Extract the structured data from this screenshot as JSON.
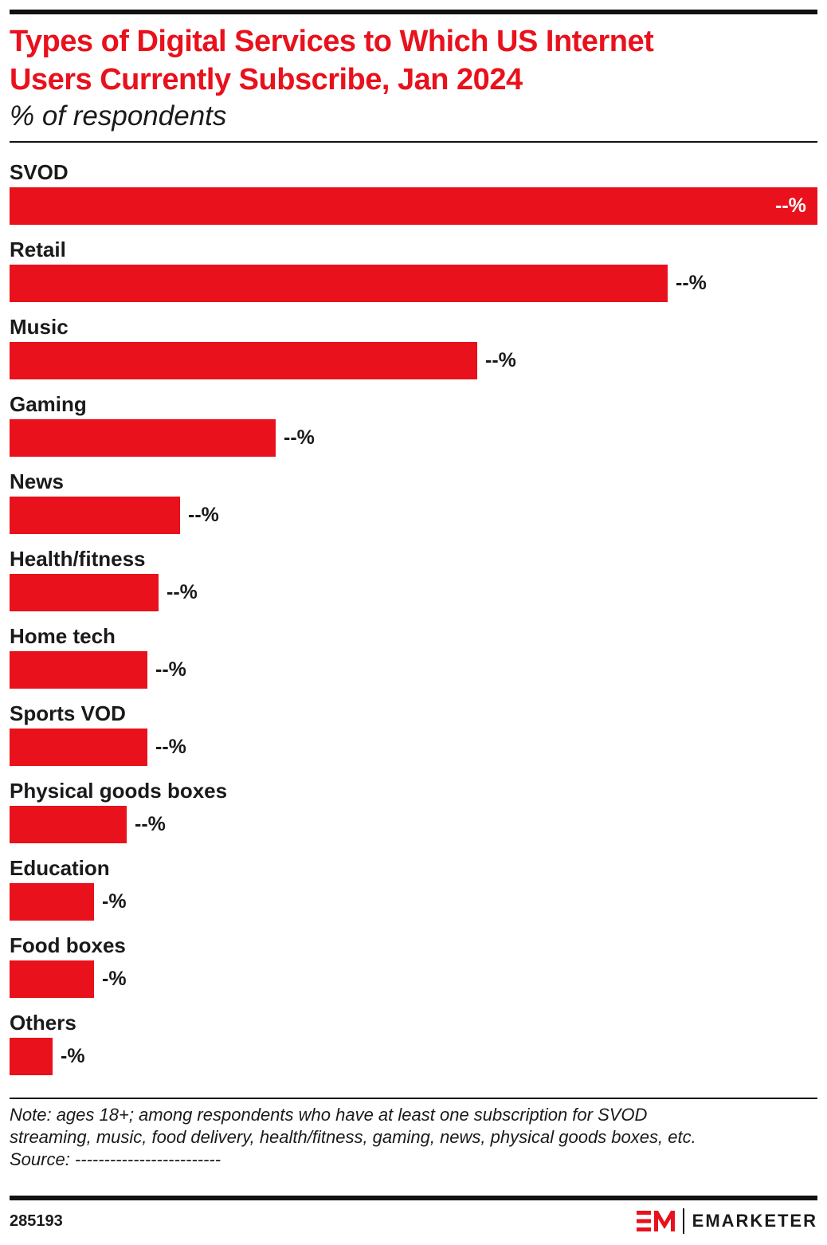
{
  "header": {
    "title_line1": "Types of Digital Services to Which US Internet",
    "title_line2": "Users Currently Subscribe, Jan 2024",
    "subtitle": "% of respondents"
  },
  "chart_data": {
    "type": "bar",
    "orientation": "horizontal",
    "title": "Types of Digital Services to Which US Internet Users Currently Subscribe, Jan 2024",
    "subtitle": "% of respondents",
    "categories": [
      "SVOD",
      "Retail",
      "Music",
      "Gaming",
      "News",
      "Health/fitness",
      "Home tech",
      "Sports VOD",
      "Physical goods boxes",
      "Education",
      "Food boxes",
      "Others"
    ],
    "values": [
      100,
      81.5,
      57.9,
      32.9,
      21.1,
      18.4,
      17.1,
      17.1,
      14.5,
      10.5,
      10.5,
      5.3
    ],
    "value_scale_note": "relative bar length (SVOD = 100); actual percentages redacted",
    "value_labels": [
      "--%",
      "--%",
      "--%",
      "--%",
      "--%",
      "--%",
      "--%",
      "--%",
      "--%",
      "-%",
      "-%",
      "-%"
    ],
    "bar_color": "#e8111c",
    "grid": false,
    "legend": "none"
  },
  "footer": {
    "note_line1": "Note: ages 18+; among respondents who have at least one subscription for SVOD",
    "note_line2": "streaming, music, food delivery, health/fitness, gaming, news, physical goods boxes, etc.",
    "source": "Source: -------------------------",
    "chart_id": "285193",
    "brand": "EMARKETER"
  },
  "colors": {
    "accent": "#e8111c",
    "text": "#1a1a1a",
    "rule": "#111111"
  }
}
